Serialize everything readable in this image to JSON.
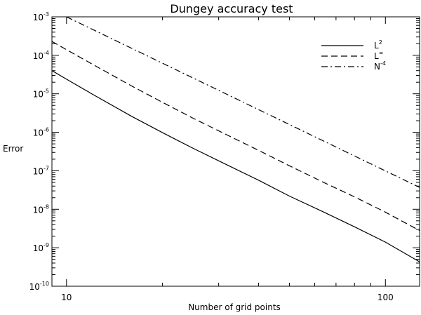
{
  "chart_data": {
    "type": "line",
    "title": "Dungey accuracy test",
    "xlabel": "Number of grid points",
    "ylabel": "Error",
    "x_scale": "log",
    "y_scale": "log",
    "xlim": [
      9,
      128
    ],
    "ylim": [
      1e-10,
      0.001
    ],
    "x_ticks": [
      {
        "value": 10,
        "label": "10"
      },
      {
        "value": 100,
        "label": "100"
      }
    ],
    "y_ticks": [
      {
        "value": 1e-10,
        "base": "10",
        "exp": "-10"
      },
      {
        "value": 1e-09,
        "base": "10",
        "exp": "-9"
      },
      {
        "value": 1e-08,
        "base": "10",
        "exp": "-8"
      },
      {
        "value": 1e-07,
        "base": "10",
        "exp": "-7"
      },
      {
        "value": 1e-06,
        "base": "10",
        "exp": "-6"
      },
      {
        "value": 1e-05,
        "base": "10",
        "exp": "-5"
      },
      {
        "value": 0.0001,
        "base": "10",
        "exp": "-4"
      },
      {
        "value": 0.001,
        "base": "10",
        "exp": "-3"
      }
    ],
    "legend_position": "top-right",
    "grid": false,
    "series": [
      {
        "name": "L",
        "name_sup": "2",
        "style": "solid",
        "x": [
          9,
          10,
          12,
          16,
          20,
          25,
          32,
          40,
          50,
          64,
          80,
          100,
          128
        ],
        "y": [
          4e-05,
          2.4e-05,
          1e-05,
          2.6e-06,
          9.8e-07,
          3.8e-07,
          1.4e-07,
          5.7e-08,
          2.2e-08,
          8.5e-09,
          3.5e-09,
          1.4e-09,
          4.3e-10
        ]
      },
      {
        "name": "L",
        "name_sup": "∞",
        "style": "dash",
        "x": [
          9,
          10,
          12,
          16,
          20,
          25,
          32,
          40,
          50,
          64,
          80,
          100,
          128
        ],
        "y": [
          0.00023,
          0.00014,
          6e-05,
          1.6e-05,
          6e-06,
          2.3e-06,
          8.4e-07,
          3.4e-07,
          1.35e-07,
          5e-08,
          2.1e-08,
          8.4e-09,
          2.8e-09
        ]
      },
      {
        "name": "N",
        "name_sup": "-4",
        "style": "dashdot",
        "x": [
          10,
          128
        ],
        "y": [
          0.001,
          3.7e-08
        ]
      }
    ]
  }
}
